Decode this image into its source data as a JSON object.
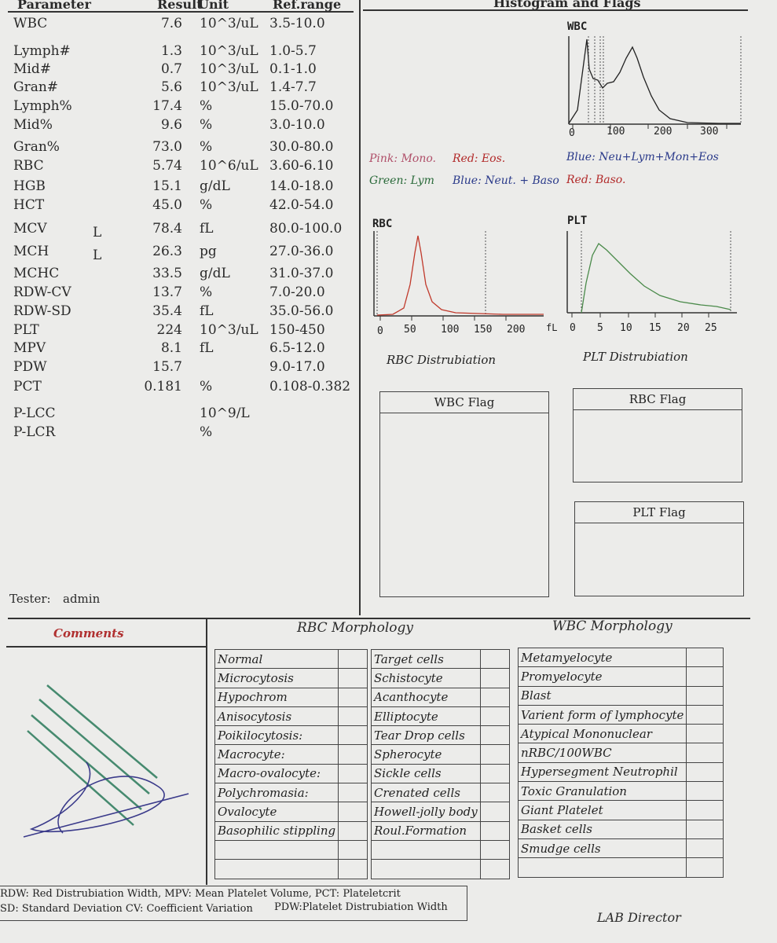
{
  "header": {
    "parameter": "Parameter",
    "result": "Result",
    "unit": "Unit",
    "ref": "Ref.range",
    "histogram": "Histogram and Flags"
  },
  "rows": [
    {
      "param": "WBC",
      "flag": "",
      "result": "7.6",
      "unit": "10^3/uL",
      "ref": "3.5-10.0"
    },
    {
      "param": "Lymph#",
      "flag": "",
      "result": "1.3",
      "unit": "10^3/uL",
      "ref": "1.0-5.7"
    },
    {
      "param": "Mid#",
      "flag": "",
      "result": "0.7",
      "unit": "10^3/uL",
      "ref": "0.1-1.0"
    },
    {
      "param": "Gran#",
      "flag": "",
      "result": "5.6",
      "unit": "10^3/uL",
      "ref": "1.4-7.7"
    },
    {
      "param": "Lymph%",
      "flag": "",
      "result": "17.4",
      "unit": "%",
      "ref": "15.0-70.0"
    },
    {
      "param": "Mid%",
      "flag": "",
      "result": "9.6",
      "unit": "%",
      "ref": "3.0-10.0"
    },
    {
      "param": "Gran%",
      "flag": "",
      "result": "73.0",
      "unit": "%",
      "ref": "30.0-80.0"
    },
    {
      "param": "RBC",
      "flag": "",
      "result": "5.74",
      "unit": "10^6/uL",
      "ref": "3.60-6.10"
    },
    {
      "param": "HGB",
      "flag": "",
      "result": "15.1",
      "unit": "g/dL",
      "ref": "14.0-18.0"
    },
    {
      "param": "HCT",
      "flag": "",
      "result": "45.0",
      "unit": "%",
      "ref": "42.0-54.0"
    },
    {
      "param": "MCV",
      "flag": "L",
      "result": "78.4",
      "unit": "fL",
      "ref": "80.0-100.0"
    },
    {
      "param": "MCH",
      "flag": "L",
      "result": "26.3",
      "unit": "pg",
      "ref": "27.0-36.0"
    },
    {
      "param": "MCHC",
      "flag": "",
      "result": "33.5",
      "unit": "g/dL",
      "ref": "31.0-37.0"
    },
    {
      "param": "RDW-CV",
      "flag": "",
      "result": "13.7",
      "unit": "%",
      "ref": "7.0-20.0"
    },
    {
      "param": "RDW-SD",
      "flag": "",
      "result": "35.4",
      "unit": "fL",
      "ref": "35.0-56.0"
    },
    {
      "param": "PLT",
      "flag": "",
      "result": "224",
      "unit": "10^3/uL",
      "ref": "150-450"
    },
    {
      "param": "MPV",
      "flag": "",
      "result": "8.1",
      "unit": "fL",
      "ref": "6.5-12.0"
    },
    {
      "param": "PDW",
      "flag": "",
      "result": "15.7",
      "unit": "",
      "ref": "9.0-17.0"
    },
    {
      "param": "PCT",
      "flag": "",
      "result": "0.181",
      "unit": "%",
      "ref": "0.108-0.382"
    },
    {
      "param": "P-LCC",
      "flag": "",
      "result": "",
      "unit": "10^9/L",
      "ref": ""
    },
    {
      "param": "P-LCR",
      "flag": "",
      "result": "",
      "unit": "%",
      "ref": ""
    }
  ],
  "tester": {
    "label": "Tester:",
    "value": "admin"
  },
  "legend": {
    "pink": "Pink: Mono.",
    "red": "Red: Eos.",
    "blue1": "Blue: Neu+Lym+Mon+Eos",
    "green": "Green: Lym",
    "blue2": "Blue: Neut. + Baso",
    "red2": "Red: Baso."
  },
  "charts": {
    "wbc": {
      "title": "WBC",
      "ticks": [
        "0",
        "100",
        "200",
        "300"
      ]
    },
    "rbc": {
      "title": "RBC",
      "ticks": [
        "0",
        "50",
        "100",
        "150",
        "200"
      ],
      "unit": "fL",
      "dist": "RBC Distrubiation"
    },
    "plt": {
      "title": "PLT",
      "ticks": [
        "0",
        "5",
        "10",
        "15",
        "20",
        "25"
      ],
      "dist": "PLT Distrubiation"
    }
  },
  "flags": {
    "wbc": "WBC Flag",
    "rbc": "RBC Flag",
    "plt": "PLT Flag"
  },
  "morphology": {
    "comments": "Comments",
    "rbc_title": "RBC Morphology",
    "wbc_title": "WBC Morphology",
    "col1": [
      "Normal",
      "Microcytosis",
      "Hypochrom",
      "Anisocytosis",
      "Poikilocytosis:",
      "Macrocyte:",
      "Macro-ovalocyte:",
      "Polychromasia:",
      "Ovalocyte",
      "Basophilic stippling",
      "",
      ""
    ],
    "col2": [
      "Target cells",
      "Schistocyte",
      "Acanthocyte",
      "Elliptocyte",
      "Tear Drop cells",
      "Spherocyte",
      "Sickle cells",
      "Crenated cells",
      "Howell-jolly body",
      "Roul.Formation",
      "",
      ""
    ],
    "col3": [
      "Metamyelocyte",
      "Promyelocyte",
      "Blast",
      "Varient form of lymphocyte",
      "Atypical Mononuclear",
      "nRBC/100WBC",
      "Hypersegment Neutrophil",
      "Toxic Granulation",
      "Giant Platelet",
      "Basket cells",
      "Smudge cells",
      ""
    ]
  },
  "footer": {
    "line1": "RDW: Red Distrubiation Width,  MPV: Mean Platelet Volume,  PCT: Plateletcrit",
    "line2a": "SD: Standard Deviation   CV: Coefficient Variation",
    "line2b": "PDW:Platelet Distrubiation Width",
    "director": "LAB Director"
  },
  "colors": {
    "rbc_curve": "#c0392b",
    "plt_curve": "#4a8a4a",
    "comments": "#b03030",
    "stamp": "#2a7a5a",
    "signature": "#3a3a8a"
  }
}
